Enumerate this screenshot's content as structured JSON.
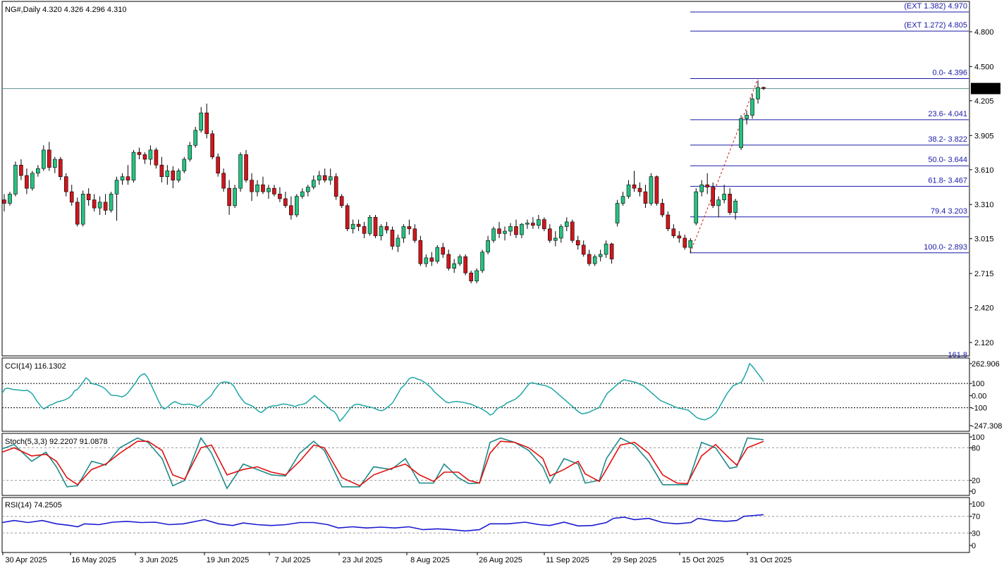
{
  "header": {
    "symbol_line": "NG#,Daily  4.320 4.326 4.296 4.310"
  },
  "colors": {
    "bull": "#26c281",
    "bear": "#d0161c",
    "fib": "#1a1aa8",
    "cci": "#1fa6a6",
    "stoch_main": "#1f8a8a",
    "stoch_signal": "#e01010",
    "rsi": "#1a1ad0",
    "price_line": "#5f8f8f"
  },
  "price_panel": {
    "y_ticks": [
      "4.800",
      "4.500",
      "4.205",
      "3.905",
      "3.610",
      "3.310",
      "3.015",
      "2.715",
      "2.420",
      "2.120"
    ],
    "current_price": "4.310",
    "fib_levels": [
      {
        "label": "(EXT 1.382)  4.970",
        "value": 4.97
      },
      {
        "label": "(EXT 1.272)  4.805",
        "value": 4.805
      },
      {
        "label": "0.0- 4.396",
        "value": 4.396
      },
      {
        "label": "23.6- 4.041",
        "value": 4.041
      },
      {
        "label": "38.2- 3.822",
        "value": 3.822
      },
      {
        "label": "50.0- 3.644",
        "value": 3.644
      },
      {
        "label": "61.8- 3.467",
        "value": 3.467
      },
      {
        "label": "79.4 3.203",
        "value": 3.203
      },
      {
        "label": "100.0- 2.893",
        "value": 2.893
      }
    ],
    "bottom_cut_label": "161.8"
  },
  "cci_panel": {
    "label": "CCI(14) 116.1302",
    "y_ticks": [
      "262.906",
      "100",
      "0.00",
      "-100",
      "-247.308"
    ]
  },
  "stoch_panel": {
    "label": "Stoch(5,3,3) 92.2207 91.0878",
    "y_ticks": [
      "100",
      "80",
      "20",
      "0"
    ]
  },
  "rsi_panel": {
    "label": "RSI(14) 74.2505",
    "y_ticks": [
      "100",
      "70",
      "30",
      "0"
    ]
  },
  "x_axis": {
    "labels": [
      "30 Apr 2025",
      "16 May 2025",
      "3 Jun 2025",
      "19 Jun 2025",
      "7 Jul 2025",
      "23 Jul 2025",
      "8 Aug 2025",
      "26 Aug 2025",
      "11 Sep 2025",
      "29 Sep 2025",
      "15 Oct 2025",
      "31 Oct 2025"
    ]
  },
  "chart_data": {
    "type": "candlestick",
    "timeframe": "Daily",
    "candles": [
      {
        "o": 3.35,
        "h": 3.4,
        "l": 3.25,
        "c": 3.32
      },
      {
        "o": 3.32,
        "h": 3.42,
        "l": 3.3,
        "c": 3.4
      },
      {
        "o": 3.4,
        "h": 3.68,
        "l": 3.38,
        "c": 3.65
      },
      {
        "o": 3.65,
        "h": 3.7,
        "l": 3.52,
        "c": 3.56
      },
      {
        "o": 3.56,
        "h": 3.62,
        "l": 3.4,
        "c": 3.45
      },
      {
        "o": 3.45,
        "h": 3.6,
        "l": 3.43,
        "c": 3.58
      },
      {
        "o": 3.58,
        "h": 3.65,
        "l": 3.55,
        "c": 3.62
      },
      {
        "o": 3.62,
        "h": 3.82,
        "l": 3.6,
        "c": 3.78
      },
      {
        "o": 3.78,
        "h": 3.85,
        "l": 3.6,
        "c": 3.63
      },
      {
        "o": 3.63,
        "h": 3.72,
        "l": 3.58,
        "c": 3.7
      },
      {
        "o": 3.7,
        "h": 3.72,
        "l": 3.52,
        "c": 3.55
      },
      {
        "o": 3.55,
        "h": 3.58,
        "l": 3.38,
        "c": 3.42
      },
      {
        "o": 3.42,
        "h": 3.48,
        "l": 3.3,
        "c": 3.33
      },
      {
        "o": 3.33,
        "h": 3.37,
        "l": 3.12,
        "c": 3.14
      },
      {
        "o": 3.14,
        "h": 3.43,
        "l": 3.12,
        "c": 3.4
      },
      {
        "o": 3.4,
        "h": 3.45,
        "l": 3.3,
        "c": 3.35
      },
      {
        "o": 3.35,
        "h": 3.4,
        "l": 3.25,
        "c": 3.28
      },
      {
        "o": 3.28,
        "h": 3.38,
        "l": 3.22,
        "c": 3.33
      },
      {
        "o": 3.33,
        "h": 3.4,
        "l": 3.22,
        "c": 3.26
      },
      {
        "o": 3.26,
        "h": 3.42,
        "l": 3.24,
        "c": 3.4
      },
      {
        "o": 3.4,
        "h": 3.55,
        "l": 3.17,
        "c": 3.52
      },
      {
        "o": 3.52,
        "h": 3.58,
        "l": 3.48,
        "c": 3.55
      },
      {
        "o": 3.55,
        "h": 3.65,
        "l": 3.48,
        "c": 3.52
      },
      {
        "o": 3.52,
        "h": 3.78,
        "l": 3.5,
        "c": 3.76
      },
      {
        "o": 3.76,
        "h": 3.8,
        "l": 3.7,
        "c": 3.74
      },
      {
        "o": 3.74,
        "h": 3.76,
        "l": 3.66,
        "c": 3.7
      },
      {
        "o": 3.7,
        "h": 3.82,
        "l": 3.65,
        "c": 3.78
      },
      {
        "o": 3.78,
        "h": 3.8,
        "l": 3.62,
        "c": 3.65
      },
      {
        "o": 3.65,
        "h": 3.72,
        "l": 3.5,
        "c": 3.55
      },
      {
        "o": 3.55,
        "h": 3.65,
        "l": 3.48,
        "c": 3.6
      },
      {
        "o": 3.6,
        "h": 3.64,
        "l": 3.45,
        "c": 3.52
      },
      {
        "o": 3.52,
        "h": 3.62,
        "l": 3.5,
        "c": 3.6
      },
      {
        "o": 3.6,
        "h": 3.72,
        "l": 3.58,
        "c": 3.7
      },
      {
        "o": 3.7,
        "h": 3.85,
        "l": 3.68,
        "c": 3.82
      },
      {
        "o": 3.82,
        "h": 3.98,
        "l": 3.8,
        "c": 3.95
      },
      {
        "o": 3.95,
        "h": 4.15,
        "l": 3.93,
        "c": 4.1
      },
      {
        "o": 4.1,
        "h": 4.18,
        "l": 3.88,
        "c": 3.92
      },
      {
        "o": 3.92,
        "h": 3.95,
        "l": 3.7,
        "c": 3.72
      },
      {
        "o": 3.72,
        "h": 3.75,
        "l": 3.55,
        "c": 3.58
      },
      {
        "o": 3.58,
        "h": 3.62,
        "l": 3.42,
        "c": 3.45
      },
      {
        "o": 3.45,
        "h": 3.52,
        "l": 3.22,
        "c": 3.3
      },
      {
        "o": 3.3,
        "h": 3.48,
        "l": 3.28,
        "c": 3.45
      },
      {
        "o": 3.45,
        "h": 3.76,
        "l": 3.42,
        "c": 3.74
      },
      {
        "o": 3.74,
        "h": 3.78,
        "l": 3.5,
        "c": 3.52
      },
      {
        "o": 3.52,
        "h": 3.58,
        "l": 3.34,
        "c": 3.42
      },
      {
        "o": 3.42,
        "h": 3.52,
        "l": 3.38,
        "c": 3.48
      },
      {
        "o": 3.48,
        "h": 3.55,
        "l": 3.4,
        "c": 3.42
      },
      {
        "o": 3.42,
        "h": 3.48,
        "l": 3.36,
        "c": 3.45
      },
      {
        "o": 3.45,
        "h": 3.48,
        "l": 3.38,
        "c": 3.4
      },
      {
        "o": 3.4,
        "h": 3.46,
        "l": 3.33,
        "c": 3.36
      },
      {
        "o": 3.36,
        "h": 3.42,
        "l": 3.28,
        "c": 3.3
      },
      {
        "o": 3.3,
        "h": 3.38,
        "l": 3.18,
        "c": 3.22
      },
      {
        "o": 3.22,
        "h": 3.4,
        "l": 3.2,
        "c": 3.38
      },
      {
        "o": 3.38,
        "h": 3.45,
        "l": 3.36,
        "c": 3.42
      },
      {
        "o": 3.42,
        "h": 3.48,
        "l": 3.38,
        "c": 3.46
      },
      {
        "o": 3.46,
        "h": 3.56,
        "l": 3.44,
        "c": 3.52
      },
      {
        "o": 3.52,
        "h": 3.6,
        "l": 3.48,
        "c": 3.56
      },
      {
        "o": 3.56,
        "h": 3.62,
        "l": 3.5,
        "c": 3.52
      },
      {
        "o": 3.52,
        "h": 3.62,
        "l": 3.48,
        "c": 3.55
      },
      {
        "o": 3.55,
        "h": 3.58,
        "l": 3.35,
        "c": 3.38
      },
      {
        "o": 3.38,
        "h": 3.4,
        "l": 3.28,
        "c": 3.3
      },
      {
        "o": 3.3,
        "h": 3.32,
        "l": 3.08,
        "c": 3.1
      },
      {
        "o": 3.1,
        "h": 3.18,
        "l": 3.06,
        "c": 3.14
      },
      {
        "o": 3.14,
        "h": 3.18,
        "l": 3.08,
        "c": 3.12
      },
      {
        "o": 3.12,
        "h": 3.16,
        "l": 3.02,
        "c": 3.06
      },
      {
        "o": 3.06,
        "h": 3.22,
        "l": 3.04,
        "c": 3.2
      },
      {
        "o": 3.2,
        "h": 3.22,
        "l": 3.02,
        "c": 3.04
      },
      {
        "o": 3.04,
        "h": 3.14,
        "l": 3.0,
        "c": 3.12
      },
      {
        "o": 3.12,
        "h": 3.16,
        "l": 3.06,
        "c": 3.09
      },
      {
        "o": 3.09,
        "h": 3.12,
        "l": 2.92,
        "c": 2.95
      },
      {
        "o": 2.95,
        "h": 3.05,
        "l": 2.9,
        "c": 3.02
      },
      {
        "o": 3.02,
        "h": 3.14,
        "l": 2.98,
        "c": 3.12
      },
      {
        "o": 3.12,
        "h": 3.18,
        "l": 3.05,
        "c": 3.1
      },
      {
        "o": 3.1,
        "h": 3.14,
        "l": 2.98,
        "c": 3.0
      },
      {
        "o": 3.0,
        "h": 3.04,
        "l": 2.78,
        "c": 2.8
      },
      {
        "o": 2.8,
        "h": 2.88,
        "l": 2.77,
        "c": 2.85
      },
      {
        "o": 2.85,
        "h": 2.9,
        "l": 2.78,
        "c": 2.82
      },
      {
        "o": 2.82,
        "h": 2.96,
        "l": 2.8,
        "c": 2.94
      },
      {
        "o": 2.94,
        "h": 2.98,
        "l": 2.85,
        "c": 2.88
      },
      {
        "o": 2.88,
        "h": 2.92,
        "l": 2.74,
        "c": 2.76
      },
      {
        "o": 2.76,
        "h": 2.84,
        "l": 2.72,
        "c": 2.8
      },
      {
        "o": 2.8,
        "h": 2.88,
        "l": 2.78,
        "c": 2.86
      },
      {
        "o": 2.86,
        "h": 2.88,
        "l": 2.7,
        "c": 2.72
      },
      {
        "o": 2.72,
        "h": 2.74,
        "l": 2.63,
        "c": 2.65
      },
      {
        "o": 2.65,
        "h": 2.76,
        "l": 2.63,
        "c": 2.74
      },
      {
        "o": 2.74,
        "h": 2.92,
        "l": 2.72,
        "c": 2.9
      },
      {
        "o": 2.9,
        "h": 3.04,
        "l": 2.88,
        "c": 3.0
      },
      {
        "o": 3.0,
        "h": 3.12,
        "l": 2.98,
        "c": 3.1
      },
      {
        "o": 3.1,
        "h": 3.16,
        "l": 3.02,
        "c": 3.06
      },
      {
        "o": 3.06,
        "h": 3.12,
        "l": 3.0,
        "c": 3.08
      },
      {
        "o": 3.08,
        "h": 3.15,
        "l": 3.04,
        "c": 3.12
      },
      {
        "o": 3.12,
        "h": 3.18,
        "l": 3.02,
        "c": 3.05
      },
      {
        "o": 3.05,
        "h": 3.15,
        "l": 3.02,
        "c": 3.14
      },
      {
        "o": 3.14,
        "h": 3.18,
        "l": 3.1,
        "c": 3.15
      },
      {
        "o": 3.15,
        "h": 3.2,
        "l": 3.1,
        "c": 3.13
      },
      {
        "o": 3.13,
        "h": 3.22,
        "l": 3.1,
        "c": 3.18
      },
      {
        "o": 3.18,
        "h": 3.2,
        "l": 3.08,
        "c": 3.1
      },
      {
        "o": 3.1,
        "h": 3.14,
        "l": 2.98,
        "c": 3.0
      },
      {
        "o": 3.0,
        "h": 3.08,
        "l": 2.95,
        "c": 3.02
      },
      {
        "o": 3.02,
        "h": 3.14,
        "l": 2.98,
        "c": 3.12
      },
      {
        "o": 3.12,
        "h": 3.2,
        "l": 3.08,
        "c": 3.16
      },
      {
        "o": 3.16,
        "h": 3.18,
        "l": 2.98,
        "c": 3.0
      },
      {
        "o": 3.0,
        "h": 3.04,
        "l": 2.92,
        "c": 2.96
      },
      {
        "o": 2.96,
        "h": 3.0,
        "l": 2.86,
        "c": 2.88
      },
      {
        "o": 2.88,
        "h": 2.92,
        "l": 2.78,
        "c": 2.8
      },
      {
        "o": 2.8,
        "h": 2.88,
        "l": 2.78,
        "c": 2.86
      },
      {
        "o": 2.86,
        "h": 2.92,
        "l": 2.82,
        "c": 2.88
      },
      {
        "o": 2.88,
        "h": 3.0,
        "l": 2.85,
        "c": 2.97
      },
      {
        "o": 2.97,
        "h": 2.98,
        "l": 2.8,
        "c": 2.84
      },
      {
        "o": 3.15,
        "h": 3.35,
        "l": 3.12,
        "c": 3.32
      },
      {
        "o": 3.32,
        "h": 3.42,
        "l": 3.3,
        "c": 3.38
      },
      {
        "o": 3.38,
        "h": 3.52,
        "l": 3.36,
        "c": 3.48
      },
      {
        "o": 3.48,
        "h": 3.6,
        "l": 3.42,
        "c": 3.45
      },
      {
        "o": 3.45,
        "h": 3.5,
        "l": 3.38,
        "c": 3.42
      },
      {
        "o": 3.42,
        "h": 3.48,
        "l": 3.28,
        "c": 3.32
      },
      {
        "o": 3.32,
        "h": 3.58,
        "l": 3.3,
        "c": 3.55
      },
      {
        "o": 3.55,
        "h": 3.56,
        "l": 3.3,
        "c": 3.32
      },
      {
        "o": 3.32,
        "h": 3.36,
        "l": 3.2,
        "c": 3.22
      },
      {
        "o": 3.22,
        "h": 3.25,
        "l": 3.08,
        "c": 3.1
      },
      {
        "o": 3.1,
        "h": 3.14,
        "l": 3.02,
        "c": 3.04
      },
      {
        "o": 3.04,
        "h": 3.08,
        "l": 2.98,
        "c": 3.02
      },
      {
        "o": 3.02,
        "h": 3.05,
        "l": 2.92,
        "c": 2.94
      },
      {
        "o": 2.94,
        "h": 3.02,
        "l": 2.89,
        "c": 3.0
      },
      {
        "o": 3.15,
        "h": 3.45,
        "l": 3.13,
        "c": 3.42
      },
      {
        "o": 3.42,
        "h": 3.52,
        "l": 3.38,
        "c": 3.48
      },
      {
        "o": 3.48,
        "h": 3.58,
        "l": 3.4,
        "c": 3.46
      },
      {
        "o": 3.46,
        "h": 3.5,
        "l": 3.28,
        "c": 3.3
      },
      {
        "o": 3.3,
        "h": 3.38,
        "l": 3.2,
        "c": 3.35
      },
      {
        "o": 3.35,
        "h": 3.48,
        "l": 3.32,
        "c": 3.4
      },
      {
        "o": 3.4,
        "h": 3.45,
        "l": 3.22,
        "c": 3.24
      },
      {
        "o": 3.24,
        "h": 3.36,
        "l": 3.18,
        "c": 3.34
      },
      {
        "o": 3.8,
        "h": 4.08,
        "l": 3.78,
        "c": 4.05
      },
      {
        "o": 4.05,
        "h": 4.12,
        "l": 4.0,
        "c": 4.08
      },
      {
        "o": 4.08,
        "h": 4.26,
        "l": 4.05,
        "c": 4.22
      },
      {
        "o": 4.22,
        "h": 4.38,
        "l": 4.18,
        "c": 4.32
      },
      {
        "o": 4.32,
        "h": 4.326,
        "l": 4.296,
        "c": 4.31
      }
    ],
    "cci": [
      20,
      55,
      62,
      55,
      50,
      48,
      46,
      42,
      40,
      45,
      30,
      10,
      -30,
      -60,
      -90,
      -110,
      -95,
      -80,
      -72,
      -60,
      -50,
      -45,
      -40,
      -30,
      -18,
      5,
      40,
      50,
      80,
      110,
      145,
      130,
      100,
      95,
      90,
      80,
      70,
      55,
      30,
      5,
      0,
      0,
      -5,
      -10,
      0,
      20,
      50,
      80,
      110,
      150,
      170,
      180,
      155,
      110,
      60,
      10,
      -40,
      -85,
      -110,
      -100,
      -80,
      -60,
      -50,
      -60,
      -70,
      -75,
      -72,
      -70,
      -75,
      -80,
      -90,
      -85,
      -60,
      -40,
      -20,
      0,
      40,
      70,
      100,
      110,
      112,
      110,
      100,
      80,
      40,
      0,
      -30,
      -60,
      -70,
      -80,
      -90,
      -110,
      -130,
      -140,
      -120,
      -100,
      -90,
      -85,
      -85,
      -80,
      -72,
      -70,
      -72,
      -78,
      -82,
      -90,
      -80,
      -75,
      -70,
      -60,
      -40,
      -20,
      0,
      -20,
      -40,
      -60,
      -80,
      -100,
      -120,
      -130,
      -160,
      -210,
      -190,
      -160,
      -130,
      -100,
      -80,
      -72,
      -72,
      -80,
      -85,
      -90,
      -95,
      -100,
      -110,
      -120,
      -125,
      -115,
      -100,
      -80,
      -60,
      -20,
      20,
      60,
      80,
      110,
      140,
      150,
      145,
      135,
      130,
      115,
      100,
      80,
      60,
      30,
      10,
      -10,
      -30,
      -50,
      -60,
      -55,
      -50,
      -48,
      -52,
      -55,
      -60,
      -65,
      -70,
      -80,
      -90,
      -100,
      -110,
      -125,
      -140,
      -160,
      -150,
      -120,
      -100,
      -90,
      -80,
      -60,
      -50,
      -40,
      -30,
      -10,
      10,
      40,
      70,
      100,
      105,
      100,
      95,
      90,
      85,
      80,
      70,
      60,
      40,
      20,
      0,
      -20,
      -40,
      -60,
      -80,
      -100,
      -120,
      -140,
      -150,
      -145,
      -140,
      -130,
      -120,
      -110,
      -100,
      -60,
      -20,
      20,
      40,
      60,
      80,
      100,
      118,
      130,
      125,
      120,
      115,
      110,
      100,
      90,
      80,
      60,
      40,
      20,
      0,
      -20,
      -40,
      -50,
      -60,
      -70,
      -80,
      -90,
      -100,
      -105,
      -110,
      -115,
      -120,
      -140,
      -160,
      -180,
      -190,
      -195,
      -200,
      -190,
      -180,
      -160,
      -140,
      -100,
      -60,
      -20,
      20,
      50,
      80,
      90,
      100,
      110,
      150,
      200,
      262.9,
      240,
      210,
      180,
      150,
      116.1
    ]
  }
}
